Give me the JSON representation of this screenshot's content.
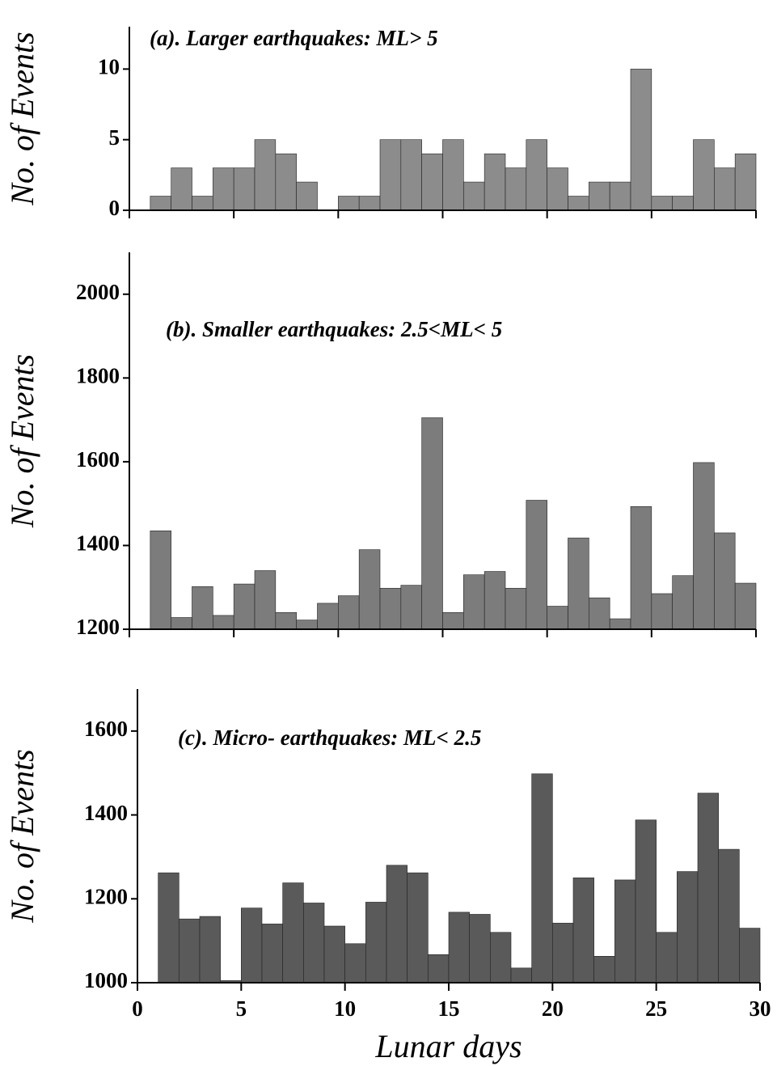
{
  "chart_data": [
    {
      "type": "histogram",
      "annotation": "(a). Larger earthquakes: ML> 5",
      "ylabel": "No. of Events",
      "bins": [
        1,
        2,
        3,
        4,
        5,
        6,
        7,
        8,
        9,
        10,
        11,
        12,
        13,
        14,
        15,
        16,
        17,
        18,
        19,
        20,
        21,
        22,
        23,
        24,
        25,
        26,
        27,
        28,
        29,
        30
      ],
      "values": [
        1,
        3,
        1,
        3,
        3,
        5,
        4,
        2,
        0,
        1,
        1,
        5,
        5,
        4,
        5,
        2,
        4,
        3,
        5,
        3,
        1,
        2,
        2,
        10,
        1,
        1,
        5,
        3,
        4
      ],
      "color": "#8c8c8c",
      "xlim": [
        0,
        30
      ],
      "xticks": [
        0,
        5,
        10,
        15,
        20,
        25,
        30
      ],
      "show_xtick_labels": false,
      "ylim": [
        0,
        13
      ],
      "yticks": [
        0,
        5,
        10
      ]
    },
    {
      "type": "histogram",
      "annotation": "(b). Smaller earthquakes: 2.5<ML< 5",
      "ylabel": "No. of Events",
      "bins": [
        1,
        2,
        3,
        4,
        5,
        6,
        7,
        8,
        9,
        10,
        11,
        12,
        13,
        14,
        15,
        16,
        17,
        18,
        19,
        20,
        21,
        22,
        23,
        24,
        25,
        26,
        27,
        28,
        29,
        30
      ],
      "values": [
        1435,
        1228,
        1302,
        1233,
        1308,
        1340,
        1240,
        1222,
        1262,
        1280,
        1390,
        1298,
        1305,
        1705,
        1240,
        1330,
        1338,
        1298,
        1508,
        1255,
        1418,
        1275,
        1225,
        1493,
        1285,
        1328,
        1598,
        1430,
        1310
      ],
      "color": "#7c7c7c",
      "xlim": [
        0,
        30
      ],
      "xticks": [
        0,
        5,
        10,
        15,
        20,
        25,
        30
      ],
      "show_xtick_labels": false,
      "ylim": [
        1200,
        2100
      ],
      "yticks": [
        1200,
        1400,
        1600,
        1800,
        2000
      ]
    },
    {
      "type": "histogram",
      "annotation": "(c). Micro- earthquakes: ML< 2.5",
      "ylabel": "No. of Events",
      "xlabel": "Lunar days",
      "bins": [
        1,
        2,
        3,
        4,
        5,
        6,
        7,
        8,
        9,
        10,
        11,
        12,
        13,
        14,
        15,
        16,
        17,
        18,
        19,
        20,
        21,
        22,
        23,
        24,
        25,
        26,
        27,
        28,
        29,
        30
      ],
      "values": [
        1262,
        1152,
        1158,
        1005,
        1178,
        1140,
        1238,
        1190,
        1135,
        1093,
        1192,
        1280,
        1262,
        1067,
        1168,
        1163,
        1120,
        1035,
        1498,
        1142,
        1250,
        1063,
        1245,
        1388,
        1120,
        1265,
        1452,
        1318,
        1130
      ],
      "color": "#5a5a5a",
      "xlim": [
        0,
        30
      ],
      "xticks": [
        0,
        5,
        10,
        15,
        20,
        25,
        30
      ],
      "show_xtick_labels": true,
      "ylim": [
        1000,
        1700
      ],
      "yticks": [
        1000,
        1200,
        1400,
        1600
      ]
    }
  ]
}
